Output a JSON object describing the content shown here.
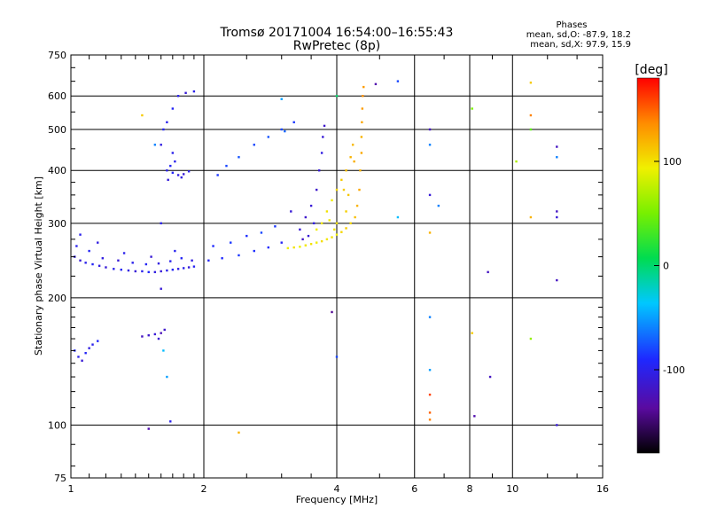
{
  "chart_data": {
    "type": "scatter",
    "title": "Tromsø 20171004 16:54:00–16:55:43",
    "subtitle": "RwPretec (8p)",
    "xlabel": "Frequency [MHz]",
    "ylabel": "Stationary phase Virtual Height [km]",
    "x_scale": "log",
    "y_scale": "log",
    "xlim": [
      1,
      16
    ],
    "ylim": [
      75,
      750
    ],
    "x_ticks": [
      1,
      2,
      4,
      6,
      8,
      10,
      16
    ],
    "x_tick_labels": [
      "1",
      "2",
      "4",
      "6",
      "8",
      "10",
      "16"
    ],
    "y_ticks": [
      75,
      100,
      200,
      300,
      400,
      500,
      600,
      750
    ],
    "y_tick_labels": [
      "75",
      "100",
      "200",
      "300",
      "400",
      "500",
      "600",
      "750"
    ],
    "grid": true,
    "stats": {
      "heading": "Phases",
      "line_o": "mean, sd,O: -87.9, 18.2",
      "line_x": "mean, sd,X:  97.9, 15.9"
    },
    "colorbar": {
      "label": "[deg]",
      "range": [
        -180,
        180
      ],
      "ticks": [
        100,
        0,
        -100
      ],
      "tick_labels": [
        "100",
        "0",
        "-100"
      ]
    },
    "series": [
      {
        "mode": "O",
        "mean_phase": -87.9,
        "points": [
          [
            1.02,
            250,
            -105
          ],
          [
            1.05,
            245,
            -110
          ],
          [
            1.08,
            242,
            -100
          ],
          [
            1.12,
            240,
            -95
          ],
          [
            1.16,
            238,
            -105
          ],
          [
            1.2,
            236,
            -110
          ],
          [
            1.25,
            234,
            -100
          ],
          [
            1.3,
            233,
            -95
          ],
          [
            1.35,
            232,
            -105
          ],
          [
            1.4,
            231,
            -110
          ],
          [
            1.45,
            231,
            -100
          ],
          [
            1.5,
            230,
            -92
          ],
          [
            1.55,
            230,
            -105
          ],
          [
            1.6,
            231,
            -110
          ],
          [
            1.65,
            232,
            -100
          ],
          [
            1.7,
            233,
            -95
          ],
          [
            1.75,
            234,
            -105
          ],
          [
            1.8,
            235,
            -100
          ],
          [
            1.85,
            236,
            -108
          ],
          [
            1.9,
            237,
            -96
          ],
          [
            1.03,
            265,
            -100
          ],
          [
            1.1,
            258,
            -95
          ],
          [
            1.18,
            248,
            -105
          ],
          [
            1.28,
            245,
            -110
          ],
          [
            1.38,
            242,
            -100
          ],
          [
            1.48,
            240,
            -95
          ],
          [
            1.58,
            241,
            -105
          ],
          [
            1.68,
            244,
            -100
          ],
          [
            1.78,
            248,
            -95
          ],
          [
            1.88,
            245,
            -105
          ],
          [
            1.05,
            282,
            -100
          ],
          [
            1.15,
            270,
            -105
          ],
          [
            1.32,
            255,
            -100
          ],
          [
            1.52,
            250,
            -110
          ],
          [
            1.72,
            258,
            -98
          ],
          [
            1.02,
            150,
            -90
          ],
          [
            1.04,
            145,
            -100
          ],
          [
            1.06,
            142,
            -110
          ],
          [
            1.08,
            148,
            -95
          ],
          [
            1.1,
            152,
            -105
          ],
          [
            1.12,
            155,
            -100
          ],
          [
            1.15,
            158,
            -92
          ],
          [
            1.45,
            162,
            -120
          ],
          [
            1.5,
            163,
            -115
          ],
          [
            1.55,
            164,
            -110
          ],
          [
            1.6,
            165,
            -125
          ],
          [
            1.63,
            168,
            -115
          ],
          [
            1.58,
            160,
            -112
          ],
          [
            1.65,
            400,
            -100
          ],
          [
            1.7,
            395,
            -95
          ],
          [
            1.75,
            390,
            -105
          ],
          [
            1.8,
            392,
            -110
          ],
          [
            1.85,
            398,
            -100
          ],
          [
            1.68,
            410,
            -95
          ],
          [
            1.72,
            420,
            -100
          ],
          [
            1.78,
            385,
            -105
          ],
          [
            1.66,
            380,
            -108
          ],
          [
            1.7,
            440,
            -100
          ],
          [
            1.6,
            460,
            -105
          ],
          [
            1.65,
            520,
            -100
          ],
          [
            1.7,
            560,
            -95
          ],
          [
            1.75,
            600,
            -100
          ],
          [
            1.82,
            610,
            -110
          ],
          [
            1.9,
            615,
            -100
          ],
          [
            1.62,
            500,
            -95
          ],
          [
            2.05,
            245,
            -95
          ],
          [
            2.2,
            248,
            -90
          ],
          [
            2.4,
            252,
            -85
          ],
          [
            2.6,
            258,
            -88
          ],
          [
            2.8,
            263,
            -90
          ],
          [
            3.0,
            270,
            -95
          ],
          [
            2.1,
            265,
            -90
          ],
          [
            2.3,
            270,
            -85
          ],
          [
            2.5,
            280,
            -88
          ],
          [
            2.7,
            285,
            -80
          ],
          [
            2.9,
            295,
            -85
          ],
          [
            2.15,
            390,
            -85
          ],
          [
            2.25,
            410,
            -80
          ],
          [
            2.4,
            430,
            -75
          ],
          [
            2.6,
            460,
            -80
          ],
          [
            2.8,
            480,
            -75
          ],
          [
            3.0,
            500,
            -80
          ],
          [
            3.2,
            520,
            -85
          ],
          [
            3.3,
            290,
            -110
          ],
          [
            3.4,
            310,
            -115
          ],
          [
            3.5,
            330,
            -110
          ],
          [
            3.6,
            360,
            -115
          ],
          [
            3.65,
            400,
            -110
          ],
          [
            3.7,
            440,
            -105
          ],
          [
            3.72,
            480,
            -110
          ],
          [
            3.75,
            510,
            -115
          ],
          [
            3.55,
            300,
            -105
          ],
          [
            3.45,
            280,
            -110
          ],
          [
            3.35,
            275,
            -118
          ]
        ]
      },
      {
        "mode": "X",
        "mean_phase": 97.9,
        "points": [
          [
            3.1,
            262,
            95
          ],
          [
            3.2,
            263,
            100
          ],
          [
            3.3,
            264,
            92
          ],
          [
            3.4,
            266,
            98
          ],
          [
            3.5,
            268,
            100
          ],
          [
            3.6,
            270,
            95
          ],
          [
            3.7,
            272,
            102
          ],
          [
            3.8,
            275,
            98
          ],
          [
            3.9,
            278,
            100
          ],
          [
            4.0,
            282,
            95
          ],
          [
            4.1,
            286,
            105
          ],
          [
            4.2,
            292,
            110
          ],
          [
            4.3,
            300,
            105
          ],
          [
            4.4,
            310,
            115
          ],
          [
            4.45,
            330,
            120
          ],
          [
            4.5,
            360,
            125
          ],
          [
            4.52,
            400,
            120
          ],
          [
            4.55,
            440,
            125
          ],
          [
            4.55,
            480,
            120
          ],
          [
            4.56,
            520,
            125
          ],
          [
            4.57,
            560,
            130
          ],
          [
            4.58,
            600,
            135
          ],
          [
            4.6,
            630,
            130
          ],
          [
            3.6,
            290,
            95
          ],
          [
            3.7,
            300,
            98
          ],
          [
            3.8,
            320,
            100
          ],
          [
            3.9,
            340,
            95
          ],
          [
            4.0,
            360,
            105
          ],
          [
            4.1,
            380,
            110
          ],
          [
            4.2,
            400,
            115
          ],
          [
            4.3,
            430,
            120
          ],
          [
            4.35,
            460,
            118
          ],
          [
            4.0,
            300,
            100
          ],
          [
            4.2,
            320,
            108
          ],
          [
            3.85,
            305,
            96
          ],
          [
            3.95,
            290,
            98
          ],
          [
            4.25,
            350,
            112
          ],
          [
            4.38,
            420,
            122
          ],
          [
            4.15,
            360,
            110
          ]
        ]
      }
    ],
    "sparse_points": [
      [
        1.45,
        540,
        110
      ],
      [
        1.55,
        460,
        -60
      ],
      [
        1.6,
        300,
        -100
      ],
      [
        1.6,
        210,
        -110
      ],
      [
        1.62,
        150,
        -40
      ],
      [
        1.65,
        130,
        -50
      ],
      [
        1.5,
        98,
        -130
      ],
      [
        1.68,
        102,
        -100
      ],
      [
        2.4,
        96,
        120
      ],
      [
        3.0,
        590,
        -50
      ],
      [
        3.05,
        495,
        -70
      ],
      [
        3.15,
        320,
        -110
      ],
      [
        3.9,
        185,
        -140
      ],
      [
        4.0,
        145,
        -80
      ],
      [
        4.0,
        600,
        0
      ],
      [
        4.9,
        640,
        -130
      ],
      [
        5.5,
        650,
        -80
      ],
      [
        5.5,
        310,
        -40
      ],
      [
        6.5,
        500,
        -120
      ],
      [
        6.5,
        460,
        -60
      ],
      [
        6.5,
        350,
        -110
      ],
      [
        6.8,
        330,
        -60
      ],
      [
        6.5,
        285,
        120
      ],
      [
        6.5,
        180,
        -60
      ],
      [
        6.5,
        135,
        -50
      ],
      [
        6.5,
        118,
        160
      ],
      [
        6.5,
        107,
        150
      ],
      [
        6.5,
        103,
        140
      ],
      [
        8.1,
        560,
        50
      ],
      [
        8.1,
        165,
        110
      ],
      [
        8.2,
        105,
        -130
      ],
      [
        8.8,
        230,
        -120
      ],
      [
        8.9,
        130,
        -120
      ],
      [
        11.0,
        645,
        110
      ],
      [
        11.0,
        540,
        140
      ],
      [
        11.0,
        500,
        40
      ],
      [
        11.0,
        310,
        120
      ],
      [
        11.0,
        160,
        60
      ],
      [
        10.2,
        420,
        70
      ],
      [
        12.6,
        455,
        -120
      ],
      [
        12.6,
        430,
        -60
      ],
      [
        12.6,
        320,
        -120
      ],
      [
        12.6,
        310,
        -110
      ],
      [
        12.6,
        220,
        -120
      ],
      [
        12.6,
        100,
        -110
      ]
    ]
  }
}
